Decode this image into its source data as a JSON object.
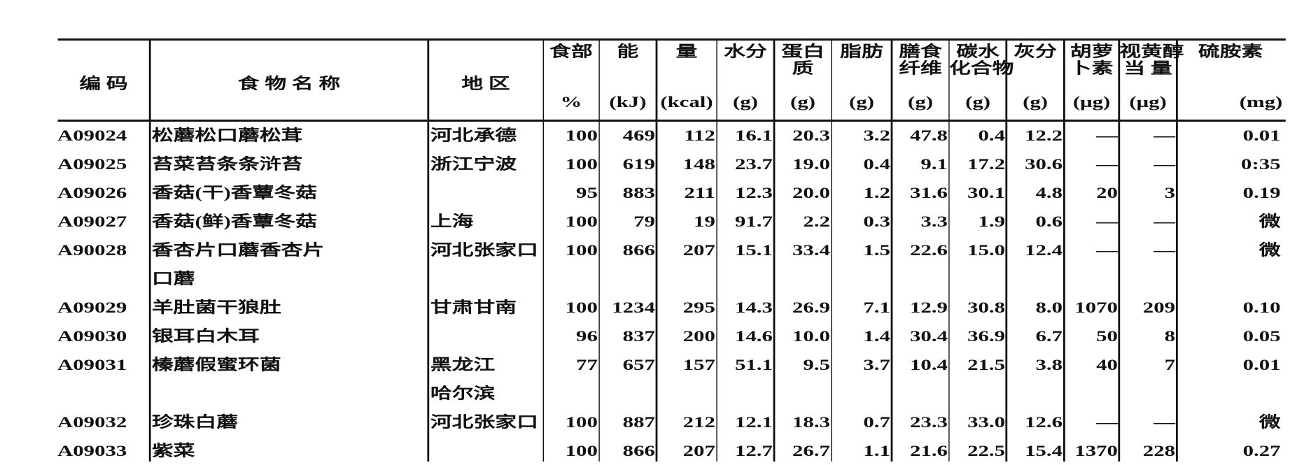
{
  "table": {
    "header": [
      {
        "key": "code",
        "lines": [
          "编  码"
        ],
        "unit": ""
      },
      {
        "key": "name",
        "lines": [
          "食 物 名 称"
        ],
        "unit": ""
      },
      {
        "key": "region",
        "lines": [
          "地  区"
        ],
        "unit": ""
      },
      {
        "key": "edible",
        "lines": [
          "食部"
        ],
        "unit": "%"
      },
      {
        "key": "energy_kj",
        "lines": [
          "能"
        ],
        "unit": "(kJ)"
      },
      {
        "key": "energy_kcal",
        "lines": [
          "量"
        ],
        "unit": "(kcal)"
      },
      {
        "key": "water",
        "lines": [
          "水分"
        ],
        "unit": "(g)"
      },
      {
        "key": "protein",
        "lines": [
          "蛋白",
          "质"
        ],
        "unit": "(g)"
      },
      {
        "key": "fat",
        "lines": [
          "脂肪"
        ],
        "unit": "(g)"
      },
      {
        "key": "fiber",
        "lines": [
          "膳食",
          "纤维"
        ],
        "unit": "(g)"
      },
      {
        "key": "carb",
        "lines": [
          "碳水",
          "化合物"
        ],
        "unit": "(g)"
      },
      {
        "key": "ash",
        "lines": [
          "灰分"
        ],
        "unit": "(g)"
      },
      {
        "key": "carotene",
        "lines": [
          "胡萝",
          "卜素"
        ],
        "unit": "(μg)"
      },
      {
        "key": "retinol",
        "lines": [
          "视黄醇",
          "当  量"
        ],
        "unit": "(μg)"
      },
      {
        "key": "thiamine",
        "lines": [
          "硫胺素"
        ],
        "unit": "(mg)"
      }
    ],
    "rows": [
      {
        "code": "A09024",
        "name": [
          "松蘑松口蘑松茸"
        ],
        "region": [
          "河北承德"
        ],
        "values": [
          "100",
          "469",
          "112",
          "16.1",
          "20.3",
          "3.2",
          "47.8",
          "0.4",
          "12.2",
          "—",
          "—",
          "0.01"
        ]
      },
      {
        "code": "A09025",
        "name": [
          "苔菜苔条条浒苔"
        ],
        "region": [
          "浙江宁波"
        ],
        "values": [
          "100",
          "619",
          "148",
          "23.7",
          "19.0",
          "0.4",
          "9.1",
          "17.2",
          "30.6",
          "—",
          "—",
          "0:35"
        ]
      },
      {
        "code": "A09026",
        "name": [
          "香菇(干)香蕈冬菇"
        ],
        "region": [
          ""
        ],
        "values": [
          "95",
          "883",
          "211",
          "12.3",
          "20.0",
          "1.2",
          "31.6",
          "30.1",
          "4.8",
          "20",
          "3",
          "0.19"
        ]
      },
      {
        "code": "A09027",
        "name": [
          "香菇(鲜)香蕈冬菇"
        ],
        "region": [
          "上海"
        ],
        "values": [
          "100",
          "79",
          "19",
          "91.7",
          "2.2",
          "0.3",
          "3.3",
          "1.9",
          "0.6",
          "—",
          "—",
          "微"
        ]
      },
      {
        "code": "A90028",
        "name": [
          "香杏片口蘑香杏片",
          "口蘑"
        ],
        "region": [
          "河北张家口"
        ],
        "values": [
          "100",
          "866",
          "207",
          "15.1",
          "33.4",
          "1.5",
          "22.6",
          "15.0",
          "12.4",
          "—",
          "—",
          "微"
        ]
      },
      {
        "code": "A09029",
        "name": [
          "羊肚菌干狼肚"
        ],
        "region": [
          "甘肃甘南"
        ],
        "values": [
          "100",
          "1234",
          "295",
          "14.3",
          "26.9",
          "7.1",
          "12.9",
          "30.8",
          "8.0",
          "1070",
          "209",
          "0.10"
        ]
      },
      {
        "code": "A09030",
        "name": [
          "银耳白木耳"
        ],
        "region": [
          ""
        ],
        "values": [
          "96",
          "837",
          "200",
          "14.6",
          "10.0",
          "1.4",
          "30.4",
          "36.9",
          "6.7",
          "50",
          "8",
          "0.05"
        ]
      },
      {
        "code": "A09031",
        "name": [
          "榛蘑假蜜环菌"
        ],
        "region": [
          "黑龙江",
          "哈尔滨"
        ],
        "values": [
          "77",
          "657",
          "157",
          "51.1",
          "9.5",
          "3.7",
          "10.4",
          "21.5",
          "3.8",
          "40",
          "7",
          "0.01"
        ]
      },
      {
        "code": "A09032",
        "name": [
          "珍珠白蘑"
        ],
        "region": [
          "河北张家口"
        ],
        "values": [
          "100",
          "887",
          "212",
          "12.1",
          "18.3",
          "0.7",
          "23.3",
          "33.0",
          "12.6",
          "—",
          "—",
          "微"
        ]
      },
      {
        "code": "A09033",
        "name": [
          "紫菜"
        ],
        "region": [
          ""
        ],
        "values": [
          "100",
          "866",
          "207",
          "12.7",
          "26.7",
          "1.1",
          "21.6",
          "22.5",
          "15.4",
          "1370",
          "228",
          "0.27"
        ]
      }
    ]
  }
}
